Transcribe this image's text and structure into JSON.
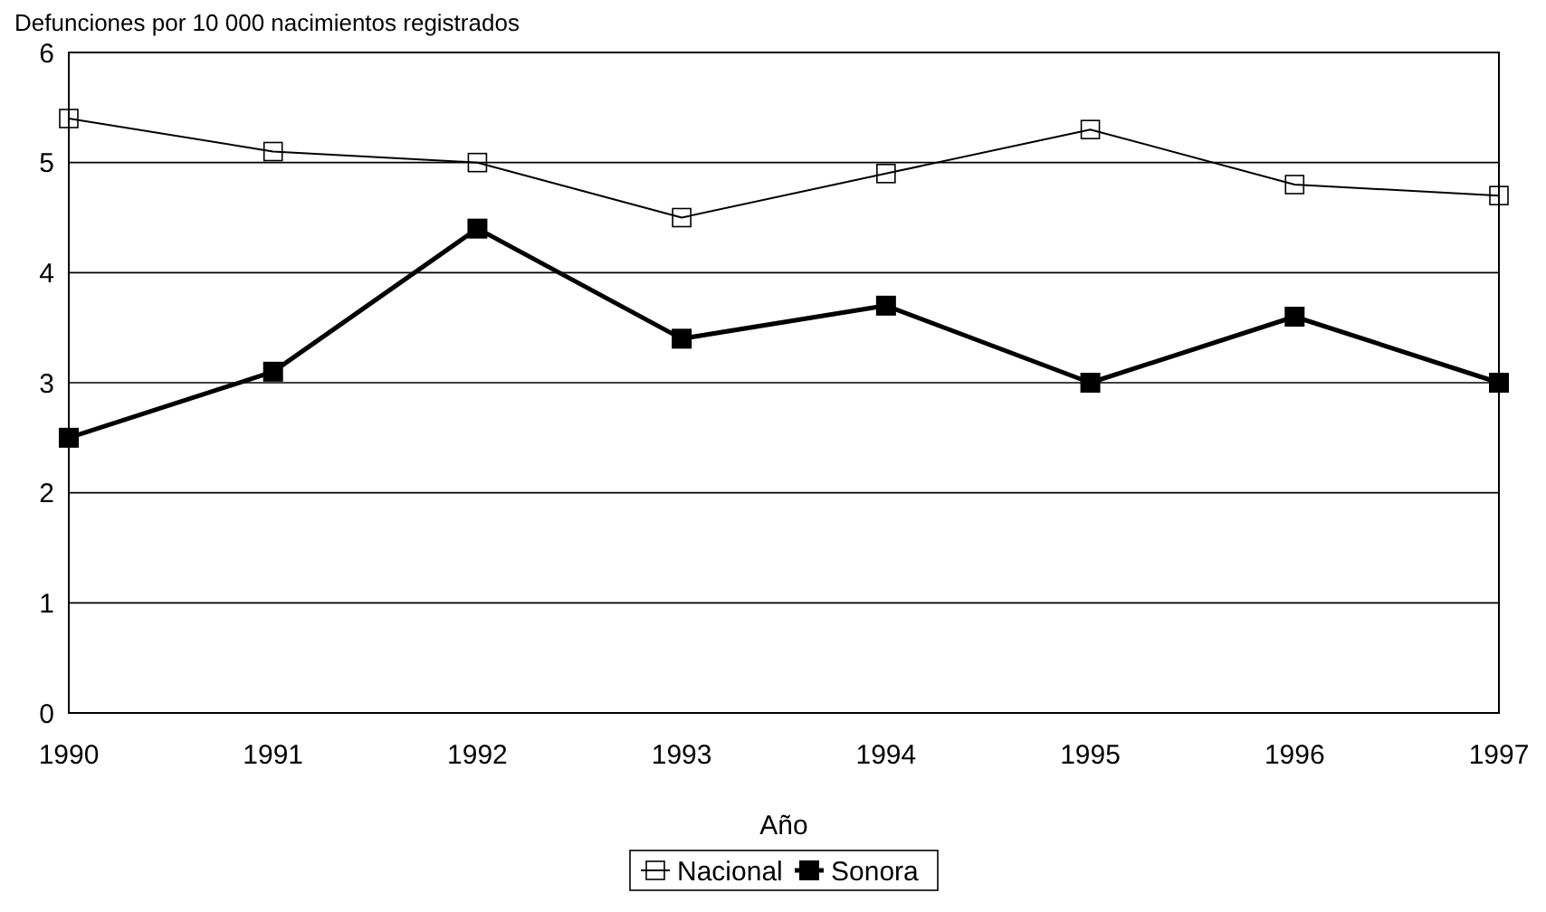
{
  "chart_data": {
    "type": "line",
    "ylabel": "Defunciones por 10 000 nacimientos registrados",
    "xlabel": "Año",
    "x": [
      1990,
      1991,
      1992,
      1993,
      1994,
      1995,
      1996,
      1997
    ],
    "series": [
      {
        "name": "Nacional",
        "color": "#000000",
        "values": [
          5.4,
          5.1,
          5.0,
          4.5,
          4.9,
          5.3,
          4.8,
          4.7
        ]
      },
      {
        "name": "Sonora",
        "color": "#000000",
        "values": [
          2.5,
          3.1,
          4.4,
          3.4,
          3.7,
          3.0,
          3.6,
          3.0
        ]
      }
    ],
    "xlim": [
      1990,
      1997
    ],
    "xticks": [
      1990,
      1991,
      1992,
      1993,
      1994,
      1995,
      1996,
      1997
    ],
    "ylim": [
      0,
      6
    ],
    "yticks": [
      0,
      1,
      2,
      3,
      4,
      5,
      6
    ],
    "grid": "y",
    "legend": "bottom",
    "marker": "square",
    "line_style": "solid"
  }
}
